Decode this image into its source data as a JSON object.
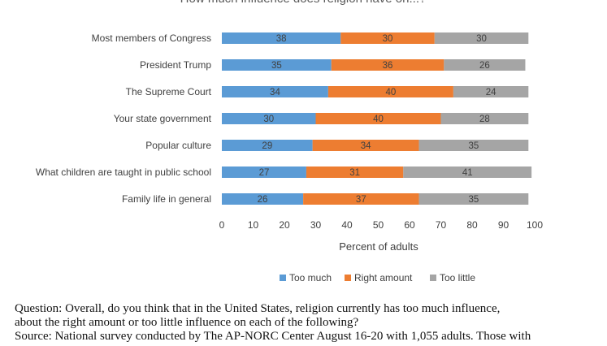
{
  "chart_data": {
    "type": "bar",
    "orientation": "horizontal",
    "stacked": true,
    "title": "How much influence does religion have on...?",
    "categories": [
      "Most members of Congress",
      "President Trump",
      "The Supreme Court",
      "Your state government",
      "Popular culture",
      "What children are taught in public school",
      "Family life in general"
    ],
    "series": [
      {
        "name": "Too much",
        "color": "#5b9bd5",
        "values": [
          38,
          35,
          34,
          30,
          29,
          27,
          26
        ]
      },
      {
        "name": "Right amount",
        "color": "#ed7d31",
        "values": [
          30,
          36,
          40,
          40,
          34,
          31,
          37
        ]
      },
      {
        "name": "Too little",
        "color": "#a5a5a5",
        "values": [
          30,
          26,
          24,
          28,
          35,
          41,
          35
        ]
      }
    ],
    "xlabel": "Percent of adults",
    "xlim": [
      0,
      100
    ],
    "xticks": [
      0,
      10,
      20,
      30,
      40,
      50,
      60,
      70,
      80,
      90,
      100
    ],
    "legend_position": "bottom",
    "grid": false
  },
  "notes": {
    "question_line1": "Question: Overall, do you think that in the United States, religion currently has too much influence,",
    "question_line2": "about the right amount or too little influence on each of the following?",
    "source_line1": "Source: National survey conducted by The AP-NORC Center August 16-20 with 1,055 adults. Those with"
  }
}
